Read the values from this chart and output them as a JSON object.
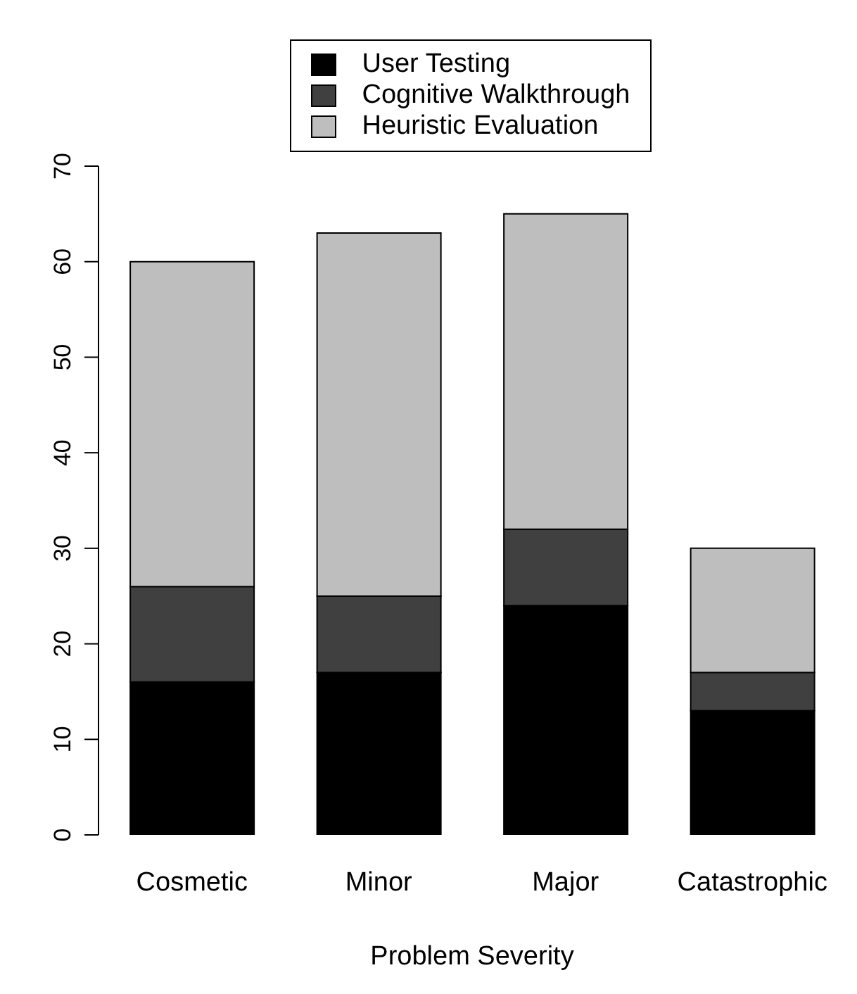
{
  "chart_data": {
    "type": "bar",
    "stacked": true,
    "xlabel": "Problem Severity",
    "categories": [
      "Cosmetic",
      "Minor",
      "Major",
      "Catastrophic"
    ],
    "series": [
      {
        "name": "User Testing",
        "color": "#000000",
        "values": [
          16,
          17,
          24,
          13
        ]
      },
      {
        "name": "Cognitive Walkthrough",
        "color": "#404040",
        "values": [
          10,
          8,
          8,
          4
        ]
      },
      {
        "name": "Heuristic Evaluation",
        "color": "#bebebe",
        "values": [
          34,
          38,
          33,
          13
        ]
      }
    ],
    "ylim": [
      0,
      70
    ],
    "yticks": [
      0,
      10,
      20,
      30,
      40,
      50,
      60,
      70
    ],
    "grid": false,
    "legend": "top"
  }
}
